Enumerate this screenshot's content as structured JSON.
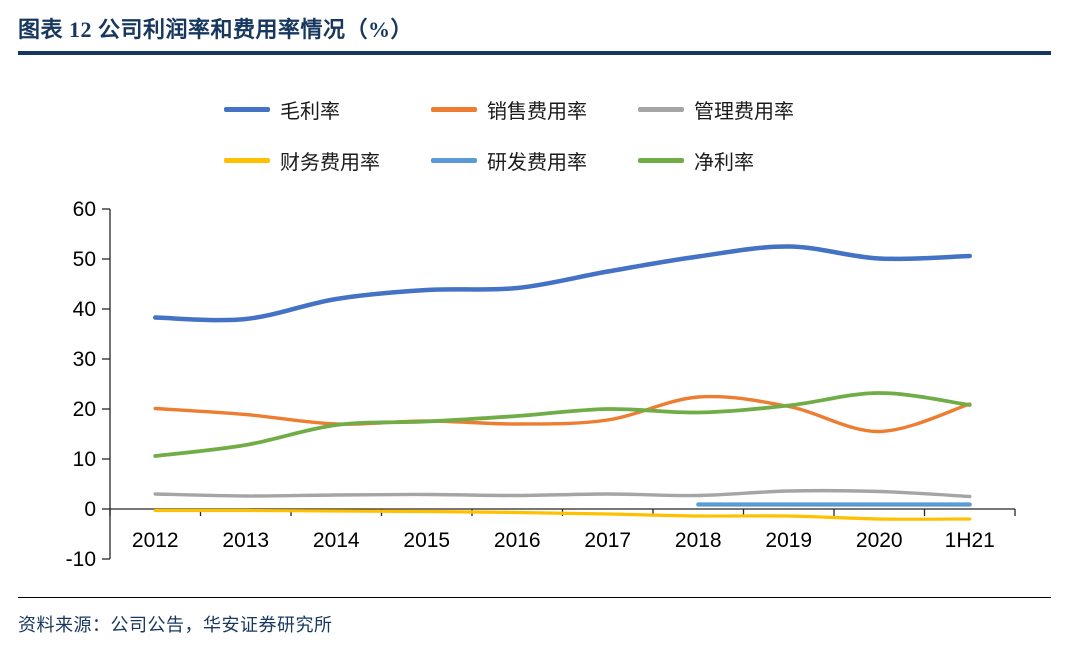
{
  "theme": {
    "accent": "#17375E",
    "axis_color": "#262626",
    "tick_label_color": "#000000"
  },
  "header": {
    "title": "图表 12 公司利润率和费用率情况（%）"
  },
  "footer": {
    "source": "资料来源：公司公告，华安证券研究所"
  },
  "chart_data": {
    "type": "line",
    "title": "公司利润率和费用率情况（%）",
    "categories": [
      "2012",
      "2013",
      "2014",
      "2015",
      "2016",
      "2017",
      "2018",
      "2019",
      "2020",
      "1H21"
    ],
    "series": [
      {
        "name": "毛利率",
        "color": "#4472C4",
        "width": 4.5,
        "values": [
          38.3,
          38.0,
          42.0,
          43.8,
          44.2,
          47.5,
          50.5,
          52.5,
          50.1,
          50.6
        ]
      },
      {
        "name": "销售费用率",
        "color": "#ED7D31",
        "width": 3.4,
        "values": [
          20.1,
          18.9,
          17.0,
          17.6,
          17.0,
          17.8,
          22.4,
          20.5,
          15.5,
          21.0
        ]
      },
      {
        "name": "管理费用率",
        "color": "#A5A5A5",
        "width": 3.4,
        "values": [
          3.0,
          2.6,
          2.8,
          2.9,
          2.7,
          3.0,
          2.7,
          3.6,
          3.5,
          2.5
        ]
      },
      {
        "name": "财务费用率",
        "color": "#FFC000",
        "width": 3.2,
        "values": [
          -0.3,
          -0.3,
          -0.4,
          -0.5,
          -0.7,
          -1.0,
          -1.4,
          -1.4,
          -2.0,
          -2.0
        ]
      },
      {
        "name": "研发费用率",
        "color": "#5B9BD5",
        "width": 4.2,
        "values": [
          null,
          null,
          null,
          null,
          null,
          null,
          0.9,
          0.9,
          0.9,
          0.9
        ]
      },
      {
        "name": "净利率",
        "color": "#70AD47",
        "width": 3.8,
        "values": [
          10.6,
          12.8,
          16.8,
          17.5,
          18.6,
          20.0,
          19.3,
          20.7,
          23.2,
          20.8
        ]
      }
    ],
    "ylim": [
      -10,
      60
    ],
    "ytick_step": 10,
    "grid": false,
    "legend_position": "top",
    "legend_items_per_row": 3,
    "smooth_lines": true
  }
}
